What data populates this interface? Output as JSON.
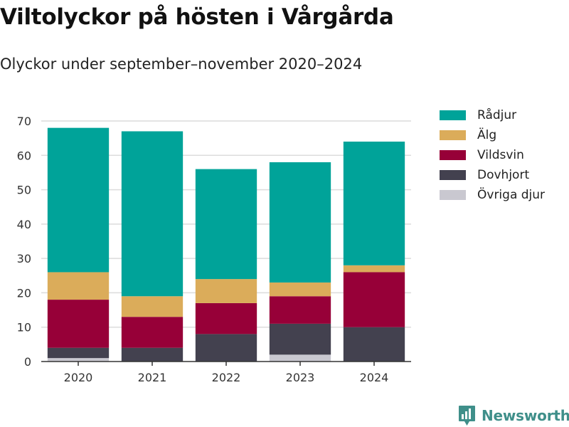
{
  "header": {
    "title": "Viltolyckor på hösten i Vårgårda",
    "subtitle": "Olyckor under september–november 2020–2024"
  },
  "chart_data": {
    "type": "bar",
    "stacked": true,
    "title": "Viltolyckor på hösten i Vårgårda",
    "subtitle": "Olyckor under september–november 2020–2024",
    "xlabel": "",
    "ylabel": "",
    "categories": [
      "2020",
      "2021",
      "2022",
      "2023",
      "2024"
    ],
    "ylim": [
      0,
      70
    ],
    "yticks": [
      0,
      10,
      20,
      30,
      40,
      50,
      60,
      70
    ],
    "grid": true,
    "legend_position": "right",
    "series": [
      {
        "name": "Övriga djur",
        "color": "#c9c8d0",
        "values": [
          1,
          0,
          0,
          2,
          0
        ]
      },
      {
        "name": "Dovhjort",
        "color": "#43414f",
        "values": [
          3,
          4,
          8,
          9,
          10
        ]
      },
      {
        "name": "Vildsvin",
        "color": "#970038",
        "values": [
          14,
          9,
          9,
          8,
          16
        ]
      },
      {
        "name": "Älg",
        "color": "#dbac5a",
        "values": [
          8,
          6,
          7,
          4,
          2
        ]
      },
      {
        "name": "Rådjur",
        "color": "#00a399",
        "values": [
          42,
          48,
          32,
          35,
          36
        ]
      }
    ]
  },
  "legend": {
    "items": [
      {
        "label": "Rådjur",
        "color": "#00a399"
      },
      {
        "label": "Älg",
        "color": "#dbac5a"
      },
      {
        "label": "Vildsvin",
        "color": "#970038"
      },
      {
        "label": "Dovhjort",
        "color": "#43414f"
      },
      {
        "label": "Övriga djur",
        "color": "#c9c8d0"
      }
    ]
  },
  "logo": {
    "text": "Newsworthy",
    "icon": "bar-chart-logo-icon",
    "color": "#3f8f8a"
  }
}
